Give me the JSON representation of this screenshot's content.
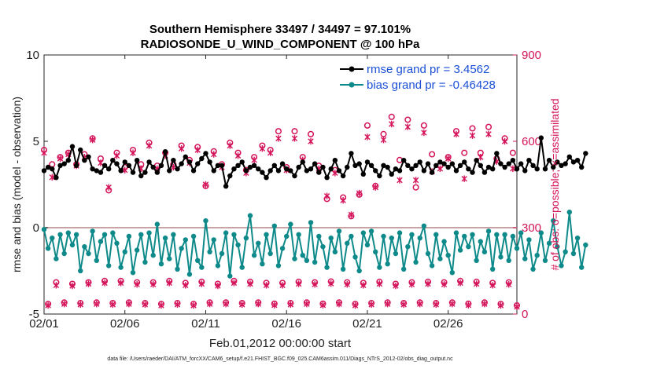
{
  "chart_data": {
    "type": "line",
    "title": "Southern Hemisphere 33497 / 34497 = 97.101%",
    "subtitle": "RADIOSONDE_U_WIND_COMPONENT @ 100 hPa",
    "xlabel": "Feb.01,2012 00:00:00 start",
    "ylabel_left": "rmse and bias (model - observation)",
    "ylabel_right": "# of obs: o=possible; ×=assimilated",
    "footnote": "data file: /Users/raeder/DAI/ATM_forcXX/CAM6_setup/f.e21.FHIST_BGC.f09_025.CAM6assim.011/Diags_NTrS_2012-02/obs_diag_output.nc",
    "xlim": [
      0,
      29.25
    ],
    "ylim_left": [
      -5,
      10
    ],
    "ylim_right": [
      0,
      900
    ],
    "x_tick_values": [
      0,
      5,
      10,
      15,
      20,
      25
    ],
    "x_tick_labels": [
      "02/01",
      "02/06",
      "02/11",
      "02/16",
      "02/21",
      "02/26"
    ],
    "y_left_ticks": [
      -5,
      0,
      5,
      10
    ],
    "y_right_ticks": [
      0,
      300,
      600,
      900
    ],
    "zero_line": 0,
    "legend": {
      "position": "top-right",
      "entries": [
        "rmse grand pr = 3.4562",
        "bias grand pr = -0.46428"
      ]
    },
    "colors": {
      "rmse": "#000000",
      "bias": "#0e8a8a",
      "obs": "#d4145a",
      "zero_line": "#c9a3a3",
      "legend_text": "#1a4fd6"
    },
    "x_step_days": 0.25,
    "series": [
      {
        "name": "rmse grand pr = 3.4562",
        "axis": "left",
        "values": [
          3.3,
          3.5,
          3.4,
          2.9,
          3.6,
          3.7,
          3.9,
          4.7,
          3.6,
          4.5,
          3.9,
          4.1,
          3.4,
          3.3,
          3.2,
          3.6,
          3.4,
          3.9,
          3.7,
          3.3,
          3.8,
          3.6,
          3.2,
          3.9,
          3.0,
          3.2,
          3.8,
          3.5,
          3.2,
          3.6,
          4.4,
          3.3,
          3.9,
          3.4,
          3.7,
          4.1,
          3.8,
          3.3,
          3.7,
          4.0,
          4.3,
          3.8,
          3.3,
          3.6,
          3.6,
          2.4,
          3.0,
          3.4,
          3.6,
          3.8,
          3.3,
          3.5,
          3.6,
          3.4,
          3.2,
          2.9,
          3.3,
          3.6,
          3.3,
          3.7,
          3.4,
          3.3,
          3.0,
          3.5,
          3.8,
          3.3,
          3.4,
          3.7,
          3.2,
          3.5,
          2.9,
          3.4,
          3.9,
          3.3,
          3.0,
          3.5,
          4.3,
          3.6,
          3.7,
          3.1,
          3.8,
          3.6,
          3.3,
          3.0,
          3.6,
          3.5,
          3.1,
          3.4,
          3.3,
          3.9,
          3.6,
          3.4,
          3.6,
          3.8,
          3.3,
          3.7,
          3.2,
          3.6,
          3.8,
          3.7,
          3.5,
          3.7,
          3.3,
          3.6,
          3.8,
          3.4,
          3.2,
          3.9,
          3.6,
          3.2,
          3.5,
          3.4,
          4.3,
          3.7,
          3.5,
          3.7,
          3.9,
          3.4,
          3.7,
          3.3,
          3.9,
          3.6,
          3.4,
          5.2,
          3.4,
          3.9,
          3.5,
          3.8,
          3.6,
          3.7,
          4.1,
          3.8,
          3.9,
          3.5,
          4.3
        ]
      },
      {
        "name": "bias grand pr = -0.46428",
        "axis": "left",
        "values": [
          -0.1,
          -1.2,
          -0.6,
          -1.8,
          -0.4,
          -1.5,
          -0.3,
          -1.0,
          -0.4,
          -2.5,
          -1.1,
          -1.5,
          -0.2,
          -1.9,
          -0.8,
          -0.4,
          -2.2,
          -0.3,
          -0.9,
          -2.3,
          -1.4,
          -0.5,
          -2.6,
          -1.3,
          -0.4,
          -2.0,
          -0.3,
          -1.6,
          0.2,
          -2.1,
          -0.6,
          -1.8,
          -0.4,
          -2.4,
          -1.2,
          -0.7,
          -2.7,
          -0.5,
          -1.9,
          -2.3,
          0.4,
          -1.4,
          -0.7,
          -2.2,
          -1.5,
          -0.3,
          -2.8,
          -0.4,
          -1.0,
          -2.3,
          -0.6,
          0.7,
          -1.6,
          -0.9,
          -2.1,
          -0.4,
          -1.5,
          0.1,
          -2.2,
          -1.2,
          -0.5,
          0.2,
          -1.8,
          -0.4,
          -1.6,
          -1.9,
          0.3,
          -2.0,
          -0.5,
          -1.1,
          -2.3,
          -0.6,
          -1.4,
          -0.2,
          -2.4,
          -0.9,
          -0.5,
          -1.7,
          -2.5,
          -0.3,
          -1.0,
          -0.2,
          -1.4,
          -2.3,
          -0.5,
          -2.1,
          -0.6,
          -1.5,
          -0.3,
          -2.4,
          -1.1,
          -0.4,
          -2.0,
          -0.6,
          0.1,
          -1.5,
          -2.2,
          -0.4,
          -1.8,
          -0.8,
          -1.6,
          -2.6,
          -0.3,
          -1.3,
          -0.5,
          -1.1,
          -0.4,
          -1.9,
          -0.8,
          -1.4,
          -0.2,
          -2.4,
          -0.4,
          -1.7,
          -0.4,
          -1.9,
          -0.5,
          -1.2,
          -0.3,
          -1.8,
          -0.7,
          -2.4,
          -1.6,
          -0.3,
          -1.9,
          -0.9,
          0.4,
          -1.1,
          -2.2,
          -1.4,
          0.9,
          -1.5,
          -0.6,
          -2.3,
          -1.0
        ]
      }
    ],
    "obs_possible": {
      "axis": "right",
      "x": [
        0.0,
        0.25,
        0.5,
        0.75,
        1.0,
        1.25,
        1.5,
        1.75,
        2.0,
        2.25,
        2.5,
        2.75,
        3.0,
        3.25,
        3.5,
        3.75,
        4.0,
        4.25,
        4.5,
        4.75,
        5.0,
        5.25,
        5.5,
        5.75,
        6.0,
        6.25,
        6.5,
        6.75,
        7.0,
        7.25,
        7.5,
        7.75,
        8.0,
        8.25,
        8.5,
        8.75,
        9.0,
        9.25,
        9.5,
        9.75,
        10.0,
        10.25,
        10.5,
        10.75,
        11.0,
        11.25,
        11.5,
        11.75,
        12.0,
        12.25,
        12.5,
        12.75,
        13.0,
        13.25,
        13.5,
        13.75,
        14.0,
        14.25,
        14.5,
        14.75,
        15.0,
        15.25,
        15.5,
        15.75,
        16.0,
        16.25,
        16.5,
        16.75,
        17.0,
        17.25,
        17.5,
        17.75,
        18.0,
        18.25,
        18.5,
        18.75,
        19.0,
        19.25,
        19.5,
        19.75,
        20.0,
        20.25,
        20.5,
        20.75,
        21.0,
        21.25,
        21.5,
        21.75,
        22.0,
        22.25,
        22.5,
        22.75,
        23.0,
        23.25,
        23.5,
        23.75,
        24.0,
        24.25,
        24.5,
        24.75,
        25.0,
        25.25,
        25.5,
        25.75,
        26.0,
        26.25,
        26.5,
        26.75,
        27.0,
        27.25,
        27.5,
        27.75,
        28.0,
        28.25,
        28.5,
        28.75,
        29.0,
        29.25
      ],
      "values": [
        570,
        35,
        520,
        110,
        545,
        40,
        560,
        105,
        520,
        38,
        555,
        110,
        610,
        40,
        540,
        115,
        430,
        38,
        560,
        115,
        510,
        40,
        570,
        110,
        520,
        38,
        595,
        110,
        515,
        35,
        560,
        115,
        520,
        38,
        585,
        108,
        535,
        35,
        580,
        112,
        445,
        40,
        565,
        105,
        520,
        40,
        595,
        115,
        560,
        38,
        500,
        112,
        545,
        40,
        585,
        108,
        570,
        36,
        635,
        108,
        510,
        38,
        635,
        112,
        545,
        40,
        625,
        110,
        515,
        36,
        400,
        113,
        500,
        40,
        405,
        110,
        340,
        35,
        415,
        108,
        655,
        38,
        445,
        112,
        625,
        40,
        685,
        105,
        535,
        38,
        675,
        110,
        440,
        40,
        655,
        112,
        555,
        38,
        515,
        110,
        545,
        40,
        635,
        115,
        560,
        36,
        645,
        112,
        560,
        40,
        650,
        108,
        540,
        35,
        610,
        110,
        560,
        30
      ]
    },
    "obs_assimilated": {
      "axis": "right",
      "x": [
        0.0,
        0.25,
        0.5,
        0.75,
        1.0,
        1.25,
        1.5,
        1.75,
        2.0,
        2.25,
        2.5,
        2.75,
        3.0,
        3.25,
        3.5,
        3.75,
        4.0,
        4.25,
        4.5,
        4.75,
        5.0,
        5.25,
        5.5,
        5.75,
        6.0,
        6.25,
        6.5,
        6.75,
        7.0,
        7.25,
        7.5,
        7.75,
        8.0,
        8.25,
        8.5,
        8.75,
        9.0,
        9.25,
        9.5,
        9.75,
        10.0,
        10.25,
        10.5,
        10.75,
        11.0,
        11.25,
        11.5,
        11.75,
        12.0,
        12.25,
        12.5,
        12.75,
        13.0,
        13.25,
        13.5,
        13.75,
        14.0,
        14.25,
        14.5,
        14.75,
        15.0,
        15.25,
        15.5,
        15.75,
        16.0,
        16.25,
        16.5,
        16.75,
        17.0,
        17.25,
        17.5,
        17.75,
        18.0,
        18.25,
        18.5,
        18.75,
        19.0,
        19.25,
        19.5,
        19.75,
        20.0,
        20.25,
        20.5,
        20.75,
        21.0,
        21.25,
        21.5,
        21.75,
        22.0,
        22.25,
        22.5,
        22.75,
        23.0,
        23.25,
        23.5,
        23.75,
        24.0,
        24.25,
        24.5,
        24.75,
        25.0,
        25.25,
        25.5,
        25.75,
        26.0,
        26.25,
        26.5,
        26.75,
        27.0,
        27.25,
        27.5,
        27.75,
        28.0,
        28.25,
        28.5,
        28.75,
        29.0,
        29.25
      ],
      "values": [
        560,
        30,
        475,
        100,
        540,
        35,
        555,
        98,
        515,
        33,
        545,
        105,
        605,
        35,
        525,
        108,
        440,
        33,
        550,
        108,
        500,
        35,
        560,
        103,
        505,
        33,
        585,
        103,
        505,
        30,
        550,
        108,
        510,
        33,
        575,
        100,
        525,
        30,
        570,
        105,
        450,
        35,
        555,
        98,
        510,
        35,
        585,
        108,
        550,
        33,
        490,
        105,
        535,
        35,
        575,
        100,
        560,
        31,
        610,
        100,
        500,
        33,
        610,
        105,
        535,
        35,
        600,
        103,
        505,
        31,
        410,
        106,
        490,
        35,
        395,
        103,
        345,
        30,
        420,
        100,
        615,
        33,
        440,
        105,
        605,
        35,
        660,
        98,
        465,
        33,
        650,
        103,
        465,
        35,
        630,
        105,
        495,
        33,
        505,
        103,
        540,
        35,
        625,
        108,
        470,
        31,
        620,
        105,
        545,
        35,
        625,
        100,
        530,
        30,
        600,
        103,
        505,
        25
      ]
    }
  }
}
